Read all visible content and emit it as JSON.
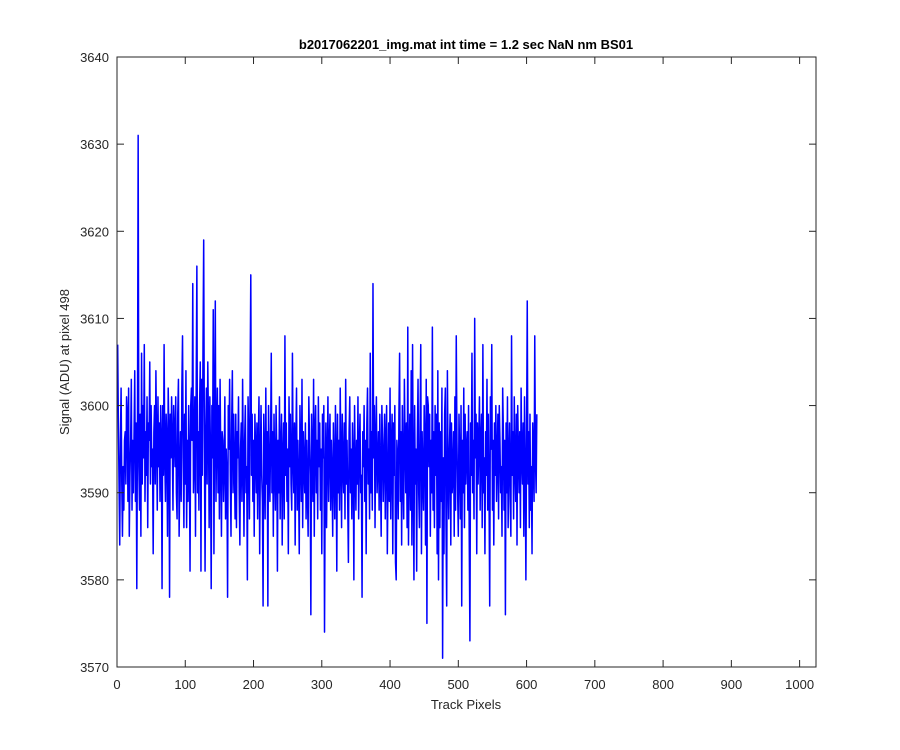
{
  "chart_data": {
    "type": "line",
    "title": "b2017062201_img.mat int time = 1.2 sec  NaN nm BS01",
    "xlabel": "Track Pixels",
    "ylabel": "Signal (ADU) at pixel 498",
    "xlim": [
      0,
      1024
    ],
    "ylim": [
      3570,
      3640
    ],
    "xticks": [
      0,
      100,
      200,
      300,
      400,
      500,
      600,
      700,
      800,
      900,
      1000
    ],
    "yticks": [
      3570,
      3580,
      3590,
      3600,
      3610,
      3620,
      3630,
      3640
    ],
    "grid": false,
    "legend": "none",
    "series": [
      {
        "color": "#0000ff",
        "x_start": 1,
        "x_step": 1,
        "values": [
          3607,
          3598,
          3591,
          3584,
          3596,
          3602,
          3591,
          3585,
          3593,
          3588,
          3596,
          3597,
          3591,
          3601,
          3599,
          3589,
          3602,
          3585,
          3592,
          3596,
          3603,
          3588,
          3596,
          3590,
          3597,
          3604,
          3589,
          3598,
          3579,
          3598,
          3631,
          3593,
          3588,
          3599,
          3585,
          3606,
          3591,
          3600,
          3594,
          3607,
          3589,
          3597,
          3592,
          3601,
          3586,
          3598,
          3596,
          3605,
          3591,
          3600,
          3593,
          3595,
          3583,
          3597,
          3600,
          3591,
          3604,
          3596,
          3588,
          3601,
          3593,
          3598,
          3589,
          3600,
          3596,
          3579,
          3600,
          3592,
          3607,
          3594,
          3589,
          3599,
          3596,
          3585,
          3602,
          3597,
          3578,
          3599,
          3594,
          3601,
          3596,
          3588,
          3600,
          3597,
          3593,
          3601,
          3590,
          3587,
          3599,
          3603,
          3585,
          3592,
          3597,
          3589,
          3602,
          3608,
          3594,
          3586,
          3599,
          3591,
          3604,
          3586,
          3596,
          3589,
          3600,
          3594,
          3581,
          3600,
          3602,
          3596,
          3614,
          3590,
          3594,
          3601,
          3585,
          3602,
          3616,
          3590,
          3597,
          3588,
          3600,
          3605,
          3581,
          3603,
          3592,
          3607,
          3619,
          3596,
          3581,
          3597,
          3602,
          3591,
          3605,
          3598,
          3586,
          3601,
          3594,
          3579,
          3600,
          3594,
          3611,
          3583,
          3599,
          3612,
          3589,
          3596,
          3602,
          3590,
          3600,
          3587,
          3603,
          3594,
          3585,
          3597,
          3596,
          3589,
          3593,
          3601,
          3587,
          3595,
          3592,
          3578,
          3600,
          3595,
          3603,
          3592,
          3585,
          3598,
          3604,
          3590,
          3599,
          3593,
          3587,
          3599,
          3586,
          3597,
          3594,
          3601,
          3590,
          3584,
          3595,
          3598,
          3589,
          3603,
          3594,
          3585,
          3596,
          3600,
          3590,
          3593,
          3580,
          3601,
          3596,
          3587,
          3603,
          3615,
          3592,
          3599,
          3589,
          3596,
          3585,
          3599,
          3595,
          3590,
          3598,
          3587,
          3596,
          3601,
          3583,
          3594,
          3600,
          3592,
          3589,
          3577,
          3599,
          3594,
          3587,
          3602,
          3591,
          3597,
          3577,
          3600,
          3594,
          3589,
          3596,
          3606,
          3590,
          3597,
          3585,
          3599,
          3593,
          3588,
          3600,
          3595,
          3581,
          3596,
          3590,
          3601,
          3587,
          3595,
          3599,
          3584,
          3594,
          3598,
          3587,
          3608,
          3592,
          3598,
          3589,
          3595,
          3583,
          3601,
          3593,
          3599,
          3591,
          3588,
          3606,
          3594,
          3590,
          3598,
          3584,
          3596,
          3602,
          3588,
          3596,
          3591,
          3583,
          3600,
          3595,
          3589,
          3603,
          3586,
          3597,
          3593,
          3590,
          3598,
          3587,
          3596,
          3590,
          3585,
          3601,
          3596,
          3592,
          3576,
          3599,
          3594,
          3589,
          3603,
          3585,
          3597,
          3600,
          3590,
          3596,
          3587,
          3601,
          3593,
          3598,
          3588,
          3595,
          3583,
          3599,
          3594,
          3600,
          3574,
          3591,
          3598,
          3586,
          3594,
          3601,
          3589,
          3595,
          3599,
          3588,
          3596,
          3592,
          3585,
          3598,
          3593,
          3587,
          3600,
          3594,
          3581,
          3599,
          3590,
          3596,
          3588,
          3602,
          3594,
          3586,
          3599,
          3593,
          3590,
          3598,
          3587,
          3603,
          3591,
          3596,
          3589,
          3582,
          3597,
          3601,
          3590,
          3595,
          3587,
          3598,
          3594,
          3580,
          3600,
          3593,
          3588,
          3596,
          3591,
          3601,
          3587,
          3595,
          3599,
          3590,
          3592,
          3578,
          3597,
          3593,
          3600,
          3589,
          3596,
          3583,
          3598,
          3602,
          3591,
          3595,
          3587,
          3606,
          3590,
          3597,
          3588,
          3614,
          3594,
          3600,
          3586,
          3596,
          3601,
          3590,
          3593,
          3597,
          3588,
          3599,
          3592,
          3585,
          3600,
          3596,
          3589,
          3594,
          3599,
          3587,
          3596,
          3600,
          3583,
          3591,
          3598,
          3589,
          3602,
          3587,
          3595,
          3599,
          3583,
          3598,
          3592,
          3600,
          3582,
          3580,
          3596,
          3594,
          3587,
          3599,
          3606,
          3589,
          3597,
          3584,
          3600,
          3592,
          3587,
          3603,
          3596,
          3590,
          3598,
          3586,
          3609,
          3584,
          3593,
          3599,
          3588,
          3604,
          3584,
          3607,
          3591,
          3580,
          3600,
          3591,
          3595,
          3581,
          3596,
          3603,
          3590,
          3586,
          3598,
          3607,
          3583,
          3597,
          3592,
          3588,
          3600,
          3596,
          3584,
          3603,
          3575,
          3601,
          3600,
          3593,
          3599,
          3585,
          3596,
          3590,
          3609,
          3588,
          3597,
          3586,
          3600,
          3592,
          3599,
          3583,
          3604,
          3580,
          3598,
          3586,
          3597,
          3589,
          3602,
          3571,
          3594,
          3583,
          3599,
          3602,
          3586,
          3577,
          3604,
          3593,
          3587,
          3595,
          3599,
          3584,
          3598,
          3590,
          3592,
          3597,
          3585,
          3601,
          3588,
          3608,
          3596,
          3590,
          3585,
          3599,
          3594,
          3587,
          3600,
          3577,
          3596,
          3590,
          3602,
          3586,
          3599,
          3591,
          3595,
          3597,
          3588,
          3600,
          3585,
          3573,
          3598,
          3592,
          3606,
          3590,
          3596,
          3587,
          3610,
          3594,
          3599,
          3583,
          3598,
          3591,
          3596,
          3601,
          3588,
          3596,
          3599,
          3586,
          3607,
          3590,
          3594,
          3583,
          3597,
          3592,
          3603,
          3588,
          3599,
          3590,
          3577,
          3601,
          3595,
          3607,
          3588,
          3596,
          3584,
          3598,
          3592,
          3600,
          3589,
          3594,
          3599,
          3587,
          3600,
          3596,
          3590,
          3593,
          3585,
          3602,
          3597,
          3588,
          3596,
          3576,
          3598,
          3590,
          3601,
          3586,
          3594,
          3598,
          3589,
          3585,
          3608,
          3592,
          3597,
          3587,
          3601,
          3593,
          3589,
          3599,
          3584,
          3600,
          3595,
          3590,
          3597,
          3586,
          3602,
          3594,
          3591,
          3598,
          3585,
          3601,
          3593,
          3580,
          3596,
          3612,
          3591,
          3597,
          3586,
          3599,
          3588,
          3593,
          3583,
          3598,
          3594,
          3589,
          3608,
          3594,
          3590,
          3599
        ]
      }
    ]
  }
}
